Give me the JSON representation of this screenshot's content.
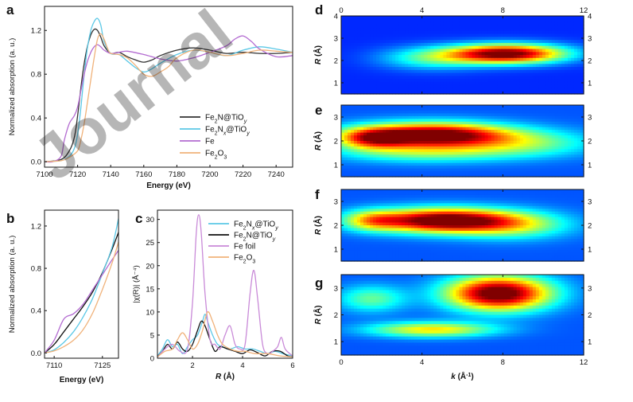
{
  "watermark": "Journal",
  "chart_data": [
    {
      "panel": "a",
      "type": "line",
      "xlabel": "Energy (eV)",
      "ylabel": "Normalized absorption (a. u.)",
      "xlim": [
        7100,
        7250
      ],
      "ylim": [
        -0.05,
        1.42
      ],
      "xticks": [
        7100,
        7120,
        7140,
        7160,
        7180,
        7200,
        7220,
        7240
      ],
      "yticks": [
        0.0,
        0.4,
        0.8,
        1.2
      ],
      "legend": "right-center",
      "series": [
        {
          "name": "Fe2N@TiOy",
          "name_display": [
            "Fe",
            "2",
            "N@TiO",
            "y"
          ],
          "color": "#333333",
          "x": [
            7100,
            7110,
            7115,
            7118,
            7120,
            7122,
            7124,
            7126,
            7128,
            7130,
            7132,
            7134,
            7136,
            7140,
            7145,
            7150,
            7155,
            7160,
            7165,
            7170,
            7180,
            7190,
            7200,
            7210,
            7220,
            7230,
            7240,
            7250
          ],
          "y": [
            0.0,
            0.02,
            0.1,
            0.22,
            0.42,
            0.68,
            0.9,
            1.06,
            1.16,
            1.21,
            1.2,
            1.14,
            1.06,
            0.99,
            1.0,
            0.96,
            0.93,
            0.91,
            0.93,
            0.97,
            1.02,
            1.04,
            1.02,
            0.99,
            1.0,
            0.99,
            0.99,
            1.0
          ]
        },
        {
          "name": "Fe2Nx@TiOy",
          "name_display": [
            "Fe",
            "2",
            "N",
            "x",
            "@TiO",
            "y"
          ],
          "color": "#5bc8e6",
          "x": [
            7100,
            7110,
            7115,
            7118,
            7120,
            7122,
            7124,
            7126,
            7128,
            7130,
            7132,
            7134,
            7136,
            7140,
            7145,
            7150,
            7155,
            7160,
            7165,
            7170,
            7180,
            7190,
            7200,
            7210,
            7220,
            7230,
            7240,
            7250
          ],
          "y": [
            0.0,
            0.01,
            0.05,
            0.12,
            0.25,
            0.5,
            0.8,
            1.05,
            1.2,
            1.28,
            1.31,
            1.25,
            1.1,
            0.99,
            0.98,
            0.92,
            0.86,
            0.82,
            0.85,
            0.9,
            0.98,
            1.02,
            1.0,
            0.97,
            1.02,
            1.05,
            1.03,
            1.0
          ]
        },
        {
          "name": "Fe",
          "name_display": [
            "Fe"
          ],
          "color": "#b36bd1",
          "x": [
            7100,
            7105,
            7110,
            7112,
            7115,
            7118,
            7120,
            7122,
            7124,
            7126,
            7128,
            7130,
            7132,
            7134,
            7136,
            7140,
            7145,
            7150,
            7160,
            7170,
            7180,
            7190,
            7200,
            7210,
            7215,
            7220,
            7225,
            7230,
            7240,
            7250
          ],
          "y": [
            0.0,
            0.0,
            0.05,
            0.2,
            0.35,
            0.42,
            0.5,
            0.65,
            0.8,
            0.92,
            1.0,
            1.05,
            1.07,
            1.05,
            1.02,
            0.99,
            1.0,
            1.01,
            0.98,
            0.94,
            0.92,
            0.95,
            1.0,
            1.06,
            1.12,
            1.15,
            1.1,
            1.03,
            0.96,
            0.97
          ]
        },
        {
          "name": "Fe2O3",
          "name_display": [
            "Fe",
            "2",
            "O",
            "3"
          ],
          "color": "#f0b27a",
          "x": [
            7100,
            7110,
            7115,
            7120,
            7122,
            7124,
            7126,
            7128,
            7130,
            7132,
            7134,
            7136,
            7138,
            7140,
            7145,
            7150,
            7155,
            7160,
            7165,
            7170,
            7175,
            7180,
            7190,
            7200,
            7210,
            7220,
            7230,
            7240,
            7250
          ],
          "y": [
            0.0,
            0.01,
            0.04,
            0.1,
            0.2,
            0.35,
            0.55,
            0.75,
            0.95,
            1.12,
            1.17,
            1.12,
            1.04,
            0.99,
            0.98,
            0.95,
            0.88,
            0.8,
            0.78,
            0.82,
            0.87,
            0.95,
            1.02,
            1.0,
            0.97,
            0.99,
            1.02,
            1.01,
            1.0
          ]
        }
      ]
    },
    {
      "panel": "b",
      "type": "line",
      "xlabel": "Energy (eV)",
      "ylabel": "Normalized absorption (a. u.)",
      "xlim": [
        7107,
        7130
      ],
      "ylim": [
        -0.05,
        1.35
      ],
      "xticks": [
        7110,
        7125
      ],
      "yticks": [
        0.0,
        0.4,
        0.8,
        1.2
      ],
      "series": [
        {
          "name": "Fe2N@TiOy",
          "color": "#111111",
          "x": [
            7107,
            7110,
            7113,
            7116,
            7119,
            7122,
            7125,
            7128,
            7130
          ],
          "y": [
            0.0,
            0.08,
            0.2,
            0.32,
            0.44,
            0.58,
            0.76,
            0.98,
            1.14
          ]
        },
        {
          "name": "Fe2Nx@TiOy",
          "color": "#5bc8e6",
          "x": [
            7107,
            7110,
            7113,
            7116,
            7119,
            7122,
            7125,
            7128,
            7130
          ],
          "y": [
            0.0,
            0.03,
            0.1,
            0.2,
            0.34,
            0.52,
            0.75,
            1.0,
            1.27
          ]
        },
        {
          "name": "Fe",
          "color": "#b36bd1",
          "x": [
            7107,
            7110,
            7113,
            7116,
            7119,
            7122,
            7125,
            7128,
            7130
          ],
          "y": [
            0.0,
            0.12,
            0.32,
            0.37,
            0.46,
            0.6,
            0.74,
            0.88,
            0.97
          ]
        },
        {
          "name": "Fe2O3",
          "color": "#f0b27a",
          "x": [
            7107,
            7110,
            7113,
            7116,
            7119,
            7122,
            7125,
            7128,
            7130
          ],
          "y": [
            0.0,
            0.02,
            0.06,
            0.12,
            0.22,
            0.38,
            0.6,
            0.85,
            1.05
          ]
        }
      ]
    },
    {
      "panel": "c",
      "type": "line",
      "xlabel": "R (Å)",
      "ylabel": "|χ(R)| (Å⁻⁴)",
      "xlim": [
        0.6,
        6
      ],
      "ylim": [
        0,
        32
      ],
      "xticks": [
        2,
        4,
        6
      ],
      "yticks": [
        0,
        5,
        10,
        15,
        20,
        25,
        30
      ],
      "legend": "top-right",
      "series": [
        {
          "name": "Fe2Nx@TiOy",
          "name_display": [
            "Fe",
            "2",
            "N",
            "x",
            "@TiO",
            "y"
          ],
          "color": "#5bc8e6",
          "x": [
            0.6,
            0.8,
            1.0,
            1.2,
            1.4,
            1.6,
            1.8,
            2.0,
            2.2,
            2.4,
            2.5,
            2.6,
            2.8,
            3.0,
            3.2,
            3.5,
            3.8,
            4.1,
            4.4,
            4.7,
            5.0,
            5.3,
            5.6,
            6.0
          ],
          "y": [
            0.5,
            2,
            4,
            2.5,
            3,
            1,
            2.5,
            4,
            5,
            8,
            9.5,
            8,
            5,
            3,
            2.5,
            2,
            2.5,
            2,
            2,
            1.5,
            1,
            1.5,
            1,
            0.5
          ]
        },
        {
          "name": "Fe2N@TiOy",
          "name_display": [
            "Fe",
            "2",
            "N@TiO",
            "y"
          ],
          "color": "#111111",
          "x": [
            0.6,
            0.8,
            1.0,
            1.2,
            1.4,
            1.6,
            1.8,
            2.0,
            2.2,
            2.35,
            2.5,
            2.7,
            2.9,
            3.1,
            3.4,
            3.7,
            4.0,
            4.3,
            4.6,
            4.9,
            5.2,
            5.5,
            5.8,
            6.0
          ],
          "y": [
            0.3,
            1.5,
            3,
            2,
            3.5,
            2,
            1.5,
            3,
            6,
            8,
            7,
            4,
            1.5,
            2.5,
            2,
            1.5,
            1,
            1.8,
            1.2,
            0.5,
            1.5,
            1.5,
            0.5,
            0.3
          ]
        },
        {
          "name": "Fe foil",
          "name_display": [
            "Fe foil"
          ],
          "color": "#c98ad8",
          "x": [
            0.6,
            0.9,
            1.2,
            1.5,
            1.8,
            2.0,
            2.15,
            2.25,
            2.35,
            2.5,
            2.7,
            2.9,
            3.1,
            3.3,
            3.5,
            3.7,
            3.9,
            4.1,
            4.3,
            4.45,
            4.6,
            4.8,
            5.0,
            5.2,
            5.4,
            5.55,
            5.7,
            6.0
          ],
          "y": [
            0.2,
            2,
            3,
            1.5,
            2,
            12,
            27,
            31,
            27,
            14,
            4,
            3,
            2,
            5,
            7,
            3,
            2,
            3,
            14,
            19,
            13,
            3,
            1,
            1.5,
            2.5,
            4.5,
            2,
            0.5
          ]
        },
        {
          "name": "Fe2O3",
          "name_display": [
            "Fe",
            "2",
            "O",
            "3"
          ],
          "color": "#f0b27a",
          "x": [
            0.6,
            0.9,
            1.2,
            1.4,
            1.6,
            1.8,
            2.0,
            2.2,
            2.4,
            2.6,
            2.8,
            3.0,
            3.2,
            3.5,
            3.8,
            4.1,
            4.5,
            5.0,
            5.5,
            6.0
          ],
          "y": [
            0.3,
            1.5,
            2,
            4,
            5.5,
            4,
            2,
            3,
            6,
            10,
            8,
            5,
            3,
            2,
            1.5,
            1.5,
            1,
            1,
            0.5,
            0.3
          ]
        }
      ]
    },
    {
      "panel": "d",
      "type": "heatmap",
      "xlabel": "k (Å⁻¹)",
      "ylabel": "R (Å)",
      "xlim": [
        0,
        12
      ],
      "ylim": [
        0.5,
        4
      ],
      "xticks": [
        0,
        4,
        8,
        12
      ],
      "yticks": [
        1,
        2,
        3,
        4
      ],
      "x_axis_top": true,
      "y_axis_right": true,
      "blobs": [
        {
          "k": 8.2,
          "r": 2.3,
          "sk": 2.0,
          "sr": 0.3,
          "amp": 1.0
        },
        {
          "k": 4.5,
          "r": 2.1,
          "sk": 1.8,
          "sr": 0.35,
          "amp": 0.3
        }
      ],
      "base": 0.05
    },
    {
      "panel": "e",
      "type": "heatmap",
      "xlabel": "k (Å⁻¹)",
      "ylabel": "R (Å)",
      "xlim": [
        0,
        12
      ],
      "ylim": [
        0.5,
        3.5
      ],
      "xticks": [
        0,
        4,
        8,
        12
      ],
      "yticks": [
        1,
        2,
        3
      ],
      "y_axis_right": true,
      "blobs": [
        {
          "k": 4.5,
          "r": 2.25,
          "sk": 2.6,
          "sr": 0.35,
          "amp": 1.0
        },
        {
          "k": 1.5,
          "r": 2.1,
          "sk": 1.2,
          "sr": 0.3,
          "amp": 0.5
        },
        {
          "k": 4.0,
          "r": 1.5,
          "sk": 3.0,
          "sr": 0.3,
          "amp": 0.3
        },
        {
          "k": 9.0,
          "r": 1.9,
          "sk": 2.5,
          "sr": 0.4,
          "amp": 0.3
        }
      ],
      "base": 0.1
    },
    {
      "panel": "f",
      "type": "heatmap",
      "xlabel": "k (Å⁻¹)",
      "ylabel": "R (Å)",
      "xlim": [
        0,
        12
      ],
      "ylim": [
        0.5,
        3.5
      ],
      "xticks": [
        0,
        4,
        8,
        12
      ],
      "yticks": [
        1,
        2,
        3
      ],
      "y_axis_right": true,
      "blobs": [
        {
          "k": 5.0,
          "r": 2.2,
          "sk": 2.4,
          "sr": 0.35,
          "amp": 1.0
        },
        {
          "k": 1.5,
          "r": 2.2,
          "sk": 1.0,
          "sr": 0.3,
          "amp": 0.35
        },
        {
          "k": 8.5,
          "r": 2.0,
          "sk": 2.0,
          "sr": 0.4,
          "amp": 0.35
        }
      ],
      "base": 0.1
    },
    {
      "panel": "g",
      "type": "heatmap",
      "xlabel": "k (Å⁻¹)",
      "ylabel": "R (Å)",
      "xlim": [
        0,
        12
      ],
      "ylim": [
        0.5,
        3.5
      ],
      "xticks": [
        0,
        4,
        8,
        12
      ],
      "yticks": [
        1,
        2,
        3
      ],
      "x_axis_bottom_labels": true,
      "y_axis_right": true,
      "blobs": [
        {
          "k": 7.8,
          "r": 2.8,
          "sk": 1.8,
          "sr": 0.45,
          "amp": 1.0
        },
        {
          "k": 4.5,
          "r": 1.45,
          "sk": 2.2,
          "sr": 0.2,
          "amp": 0.5
        },
        {
          "k": 1.5,
          "r": 2.6,
          "sk": 1.2,
          "sr": 0.35,
          "amp": 0.3
        }
      ],
      "base": 0.1
    }
  ]
}
